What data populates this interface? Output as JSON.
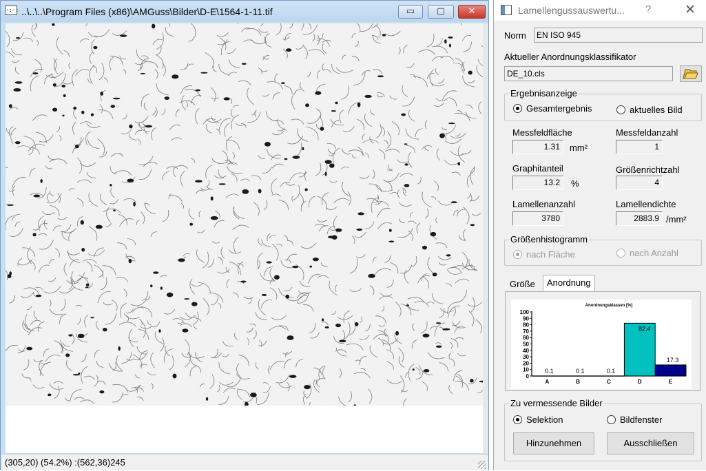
{
  "image_window": {
    "title": "..\\..\\..\\Program Files (x86)\\AMGuss\\Bilder\\D-E\\1564-1-11.tif",
    "icon": "image-file-icon",
    "app_icon_glyph": "·:·:",
    "buttons": {
      "minimize": "▭",
      "maximize": "▢",
      "close": "✕"
    },
    "status": "(305,20) (54.2%) :(562,36)245"
  },
  "dialog": {
    "title": "Lamellengussauswertu...",
    "help": "?",
    "close": "✕",
    "norm_label": "Norm",
    "norm_value": "EN ISO 945",
    "classifier_label": "Aktueller Anordnungsklassifikator",
    "classifier_value": "DE_10.cls",
    "ergebnis": {
      "title": "Ergebnisanzeige",
      "option_total": "Gesamtergebnis",
      "option_current": "aktuelles Bild",
      "selected": "Gesamtergebnis"
    },
    "metrics": {
      "messfeldflaeche_label": "Messfeldfläche",
      "messfeldflaeche_value": "1.31",
      "messfeldflaeche_unit": "mm²",
      "messfeldanzahl_label": "Messfeldanzahl",
      "messfeldanzahl_value": "1",
      "graphitanteil_label": "Graphitanteil",
      "graphitanteil_value": "13.2",
      "graphitanteil_unit": "%",
      "groessenrichtzahl_label": "Größenrichtzahl",
      "groessenrichtzahl_value": "4",
      "lamellenanzahl_label": "Lamellenanzahl",
      "lamellenanzahl_value": "3780",
      "lamellendichte_label": "Lamellendichte",
      "lamellendichte_value": "2883.9",
      "lamellendichte_unit": "/mm²"
    },
    "histogramm": {
      "title": "Größenhistogramm",
      "option_area": "nach Fläche",
      "option_count": "nach Anzahl",
      "selected": "nach Fläche"
    },
    "tabs": [
      "Größe",
      "Anordnung"
    ],
    "active_tab": "Anordnung",
    "bilder": {
      "title": "Zu vermessende Bilder",
      "option_selection": "Selektion",
      "option_window": "Bildfenster",
      "selected": "Selektion"
    },
    "buttons": {
      "add": "Hinzunehmen",
      "exclude": "Ausschließen"
    }
  },
  "chart_data": {
    "type": "bar",
    "title": "Anordnungsklassen [%]",
    "categories": [
      "A",
      "B",
      "C",
      "D",
      "E"
    ],
    "values": [
      0.1,
      0.1,
      0.1,
      82.4,
      17.3
    ],
    "value_labels": [
      "0.1",
      "0.1",
      "0.1",
      "82.4",
      "17.3"
    ],
    "ylim": [
      0,
      100
    ],
    "yticks": [
      0,
      10,
      20,
      30,
      40,
      50,
      60,
      70,
      80,
      90,
      100
    ],
    "bar_colors": [
      "#00c0c0",
      "#00c0c0",
      "#00c0c0",
      "#00c0c0",
      "#00008b"
    ],
    "grid": false,
    "legend": "none"
  },
  "colors": {
    "chart_cyan": "#00c0c0",
    "chart_navy": "#00008b",
    "close_red": "#c6372b"
  }
}
